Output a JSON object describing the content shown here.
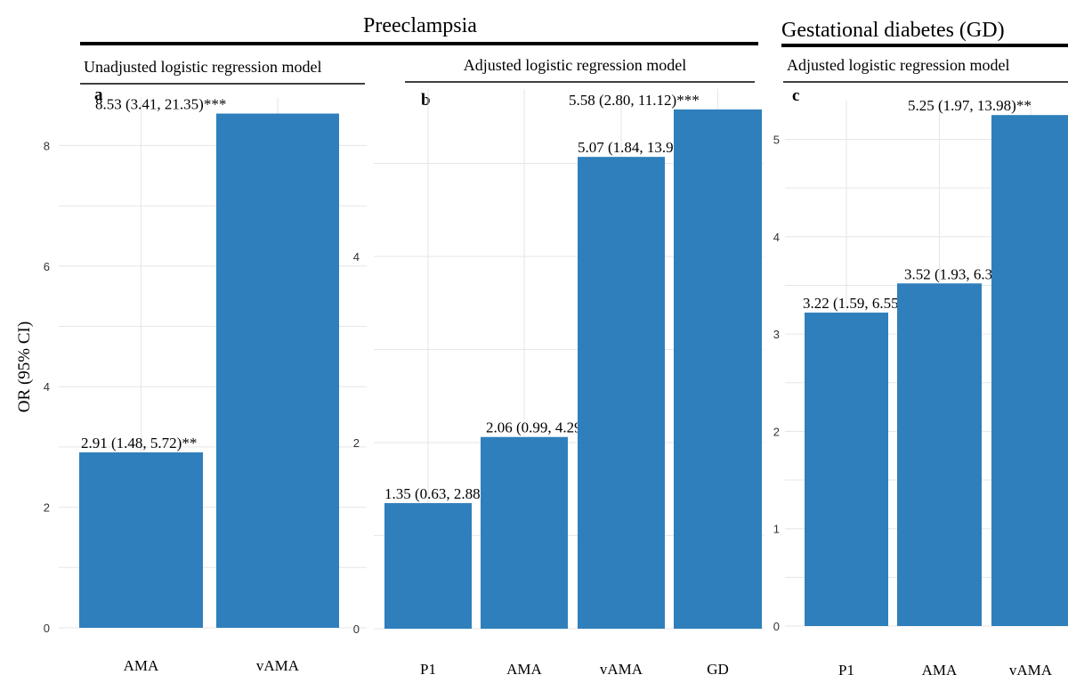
{
  "group_titles": {
    "preeclampsia": "Preeclampsia",
    "gd": "Gestational diabetes (GD)"
  },
  "y_axis_label": "OR (95% CI)",
  "chart_data": [
    {
      "type": "bar",
      "panel": "a",
      "group": "Preeclampsia",
      "subtitle": "Unadjusted logistic regression model",
      "categories": [
        "AMA",
        "vAMA"
      ],
      "values": [
        2.91,
        8.53
      ],
      "labels": [
        "2.91 (1.48, 5.72)**",
        "8.53 (3.41, 21.35)***"
      ],
      "yticks": [
        0,
        2,
        4,
        6,
        8
      ],
      "ylim": [
        0,
        8.8
      ],
      "grid": true
    },
    {
      "type": "bar",
      "panel": "b",
      "group": "Preeclampsia",
      "subtitle": "Adjusted logistic regression model",
      "categories": [
        "P1",
        "AMA",
        "vAMA",
        "GD"
      ],
      "values": [
        1.35,
        2.06,
        5.07,
        5.58
      ],
      "labels": [
        "1.35 (0.63, 2.88)",
        "2.06 (0.99, 4.29)",
        "5.07 (1.84, 13.91)**",
        "5.58 (2.80, 11.12)***"
      ],
      "yticks": [
        0,
        2,
        4
      ],
      "ylim": [
        0,
        5.8
      ],
      "grid": true
    },
    {
      "type": "bar",
      "panel": "c",
      "group": "Gestational diabetes (GD)",
      "subtitle": "Adjusted logistic regression model",
      "categories": [
        "P1",
        "AMA",
        "vAMA"
      ],
      "values": [
        3.22,
        3.52,
        5.25
      ],
      "labels": [
        "3.22 (1.59, 6.55)**",
        "3.52 (1.93, 6.39)***",
        "5.25 (1.97, 13.98)**"
      ],
      "yticks": [
        0,
        1,
        2,
        3,
        4,
        5
      ],
      "ylim": [
        0,
        5.4
      ],
      "grid": true
    }
  ]
}
